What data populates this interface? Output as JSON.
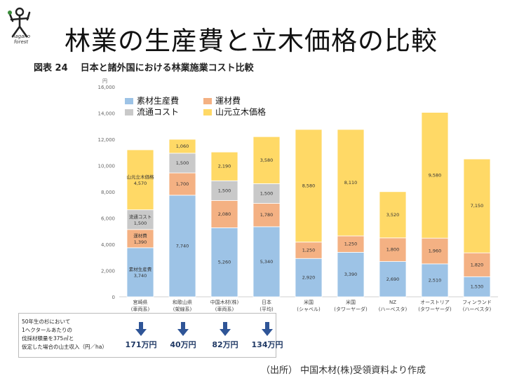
{
  "slide": {
    "title": "林業の生産費と立木価格の比較",
    "logo_text": "nagano forest",
    "figure_number": "図表 24",
    "figure_title": "日本と諸外国における林業施業コスト比較",
    "source": "（出所） 中国木材(株)受領資料より作成"
  },
  "chart_data": {
    "type": "bar",
    "stacked": true,
    "ylabel": "円",
    "ylim": [
      0,
      16000
    ],
    "yticks": [
      "0",
      "2,000",
      "4,000",
      "6,000",
      "8,000",
      "10,000",
      "12,000",
      "14,000",
      "16,000"
    ],
    "categories": [
      {
        "name": "宮崎県",
        "sub": "(車両系)"
      },
      {
        "name": "和歌山県",
        "sub": "(架線系)"
      },
      {
        "name": "中国木材(株)",
        "sub": "(車両系)"
      },
      {
        "name": "日本",
        "sub": "(平均)"
      },
      {
        "name": "米国",
        "sub": "(シャベル)"
      },
      {
        "name": "米国",
        "sub": "(タワーヤーダ)"
      },
      {
        "name": "NZ",
        "sub": "(ハーベスタ)"
      },
      {
        "name": "オーストリア",
        "sub": "(タワーヤーダ)"
      },
      {
        "name": "フィンランド",
        "sub": "(ハーベスタ)"
      }
    ],
    "series": [
      {
        "name": "素材生産費",
        "color": "#9dc3e6",
        "values": [
          3740,
          7740,
          5260,
          5340,
          2920,
          3390,
          2690,
          2510,
          1530
        ],
        "labels": [
          "3,740",
          "7,740",
          "5,260",
          "5,340",
          "2,920",
          "3,390",
          "2,690",
          "2,510",
          "1,530"
        ]
      },
      {
        "name": "運材費",
        "color": "#f4b183",
        "values": [
          1390,
          1700,
          2080,
          1780,
          1250,
          1250,
          1800,
          1960,
          1820
        ],
        "labels": [
          "1,390",
          "1,700",
          "2,080",
          "1,780",
          "1,250",
          "1,250",
          "1,800",
          "1,960",
          "1,820"
        ]
      },
      {
        "name": "流通コスト",
        "color": "#c9c9c9",
        "values": [
          1500,
          1500,
          1500,
          1500,
          0,
          0,
          0,
          0,
          0
        ],
        "labels": [
          "1,500",
          "1,500",
          "1,500",
          "1,500",
          "",
          "",
          "",
          "",
          ""
        ]
      },
      {
        "name": "山元立木価格",
        "color": "#ffd966",
        "values": [
          4570,
          1060,
          2190,
          3580,
          8580,
          8110,
          3520,
          9580,
          7150
        ],
        "labels": [
          "4,570",
          "1,060",
          "2,190",
          "3,580",
          "8,580",
          "8,110",
          "3,520",
          "9,580",
          "7,150"
        ]
      }
    ],
    "first_bar_series_tags": [
      "素材生産費",
      "運材費",
      "流通コスト",
      "山元立木価格"
    ],
    "legend_position": "top-left"
  },
  "bottom_box": {
    "note": "50年生の杉において\n1ヘクタールあたりの\n伐採材積量を375㎥と\n仮定した場合の山主収入（円／ha）",
    "incomes": [
      "171万円",
      "40万円",
      "82万円",
      "134万円"
    ]
  },
  "colors": {
    "arrow": "#2f5597",
    "income_text": "#1f3864"
  }
}
